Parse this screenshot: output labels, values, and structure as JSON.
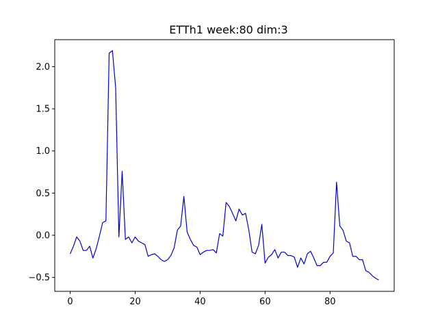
{
  "chart_data": {
    "type": "line",
    "title": "ETTh1 week:80 dim:3",
    "xlabel": "",
    "ylabel": "",
    "xlim": [
      -4.75,
      99.75
    ],
    "ylim": [
      -0.665,
      2.32
    ],
    "x_ticks": [
      0,
      20,
      40,
      60,
      80
    ],
    "y_ticks": [
      -0.5,
      0.0,
      0.5,
      1.0,
      1.5,
      2.0
    ],
    "x_tick_labels": [
      "0",
      "20",
      "40",
      "60",
      "80"
    ],
    "y_tick_labels": [
      "−0.5",
      "0.0",
      "0.5",
      "1.0",
      "1.5",
      "2.0"
    ],
    "grid": false,
    "legend": false,
    "series": [
      {
        "color": "#0000cc",
        "x": [
          0,
          1,
          2,
          3,
          4,
          5,
          6,
          7,
          8,
          9,
          10,
          11,
          12,
          13,
          14,
          15,
          16,
          17,
          18,
          19,
          20,
          21,
          22,
          23,
          24,
          25,
          26,
          27,
          28,
          29,
          30,
          31,
          32,
          33,
          34,
          35,
          36,
          37,
          38,
          39,
          40,
          41,
          42,
          43,
          44,
          45,
          46,
          47,
          48,
          49,
          50,
          51,
          52,
          53,
          54,
          55,
          56,
          57,
          58,
          59,
          60,
          61,
          62,
          63,
          64,
          65,
          66,
          67,
          68,
          69,
          70,
          71,
          72,
          73,
          74,
          75,
          76,
          77,
          78,
          79,
          80,
          81,
          82,
          83,
          84,
          85,
          86,
          87,
          88,
          89,
          90,
          91,
          92,
          93,
          94,
          95
        ],
        "y": [
          -0.22,
          -0.13,
          -0.02,
          -0.07,
          -0.18,
          -0.18,
          -0.13,
          -0.27,
          -0.16,
          -0.01,
          0.15,
          0.17,
          2.16,
          2.19,
          1.75,
          -0.02,
          0.76,
          -0.05,
          -0.02,
          -0.09,
          -0.02,
          -0.07,
          -0.09,
          -0.11,
          -0.25,
          -0.23,
          -0.22,
          -0.25,
          -0.29,
          -0.31,
          -0.29,
          -0.24,
          -0.15,
          0.06,
          0.11,
          0.46,
          0.04,
          -0.05,
          -0.12,
          -0.14,
          -0.23,
          -0.2,
          -0.18,
          -0.18,
          -0.17,
          -0.21,
          0.02,
          -0.01,
          0.39,
          0.34,
          0.26,
          0.17,
          0.31,
          0.24,
          0.26,
          0.06,
          -0.2,
          -0.22,
          -0.12,
          0.13,
          -0.33,
          -0.26,
          -0.23,
          -0.17,
          -0.27,
          -0.2,
          -0.2,
          -0.24,
          -0.24,
          -0.26,
          -0.38,
          -0.27,
          -0.34,
          -0.22,
          -0.19,
          -0.27,
          -0.36,
          -0.36,
          -0.32,
          -0.32,
          -0.25,
          -0.21,
          0.63,
          0.11,
          0.06,
          -0.07,
          -0.09,
          -0.25,
          -0.25,
          -0.29,
          -0.29,
          -0.42,
          -0.44,
          -0.48,
          -0.51,
          -0.53
        ]
      }
    ]
  }
}
